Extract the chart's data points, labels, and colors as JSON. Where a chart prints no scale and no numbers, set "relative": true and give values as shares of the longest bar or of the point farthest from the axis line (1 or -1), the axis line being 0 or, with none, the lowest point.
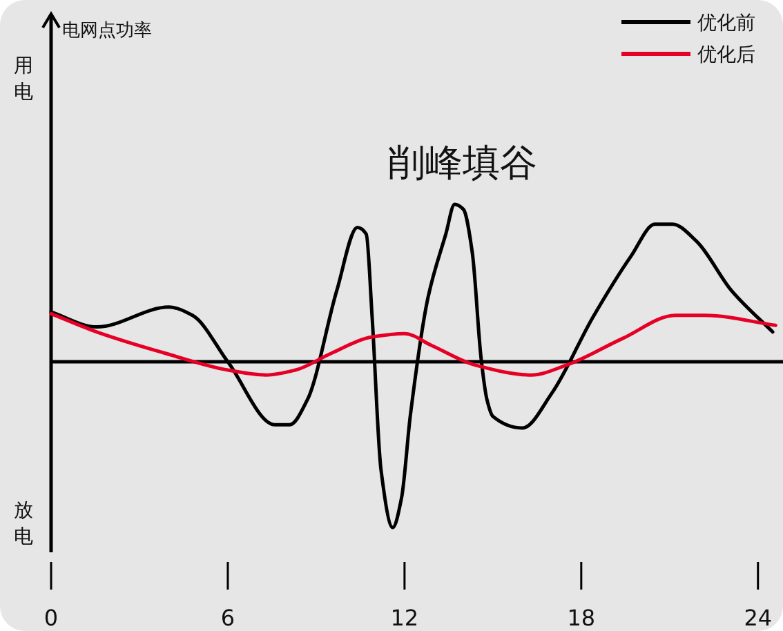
{
  "chart_data": {
    "type": "line",
    "title": "削峰填谷",
    "annotations": [
      "电网点功率",
      "用电",
      "放电"
    ],
    "relative": true,
    "legend": "top right",
    "xlim": [
      0,
      24.85
    ],
    "xticks": [
      0,
      6,
      12,
      18,
      24
    ],
    "series": [
      {
        "name": "优化前",
        "color": "#000000",
        "x": [
          0,
          1.55,
          4.0,
          4.8,
          6.0,
          7.6,
          8.1,
          8.7,
          9.7,
          10.4,
          10.7,
          10.9,
          11.2,
          11.6,
          11.9,
          12.2,
          12.8,
          13.4,
          13.7,
          14.0,
          14.3,
          14.6,
          14.8,
          15.0,
          16.0,
          17.0,
          18.4,
          19.7,
          20.5,
          21.1,
          21.9,
          23.1,
          24.5
        ],
        "values": [
          0.3,
          0.21,
          0.33,
          0.28,
          0,
          -0.38,
          -0.38,
          -0.23,
          0.43,
          0.81,
          0.77,
          0.27,
          -0.65,
          -1.0,
          -0.82,
          -0.32,
          0.39,
          0.77,
          0.95,
          0.92,
          0.66,
          0.02,
          -0.23,
          -0.33,
          -0.4,
          -0.19,
          0.27,
          0.64,
          0.83,
          0.83,
          0.73,
          0.43,
          0.18
        ]
      },
      {
        "name": "优化后",
        "color": "#e60026",
        "x": [
          0,
          1.55,
          3.9,
          6.0,
          7.3,
          8.3,
          9.5,
          10.9,
          12.0,
          12.9,
          14.4,
          16.3,
          17.5,
          19.4,
          21.2,
          22.2,
          24.6
        ],
        "values": [
          0.29,
          0.18,
          0.05,
          -0.05,
          -0.08,
          -0.05,
          0.05,
          0.15,
          0.17,
          0.1,
          -0.02,
          -0.08,
          -0.02,
          0.14,
          0.28,
          0.28,
          0.22
        ]
      }
    ]
  }
}
